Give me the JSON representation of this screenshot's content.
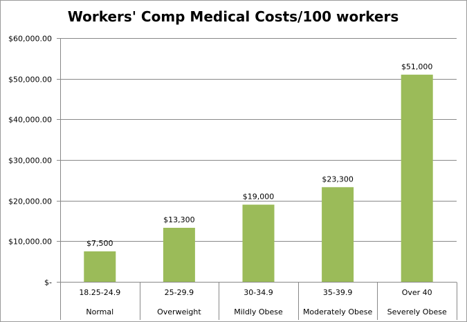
{
  "chart_data": {
    "type": "bar",
    "title": "Workers' Comp Medical Costs/100 workers",
    "categories": [
      [
        "18.25-24.9",
        "Normal"
      ],
      [
        "25-29.9",
        "Overweight"
      ],
      [
        "30-34.9",
        "Mildly Obese"
      ],
      [
        "35-39.9",
        "Moderately Obese"
      ],
      [
        "Over 40",
        "Severely Obese"
      ]
    ],
    "values": [
      7500,
      13300,
      19000,
      23300,
      51000
    ],
    "data_labels": [
      "$7,500",
      "$13,300",
      "$19,000",
      "$23,300",
      "$51,000"
    ],
    "ylim": [
      0,
      60000
    ],
    "yticks": [
      0,
      10000,
      20000,
      30000,
      40000,
      50000,
      60000
    ],
    "ytick_labels": [
      "$-",
      "$10,000.00",
      "$20,000.00",
      "$30,000.00",
      "$40,000.00",
      "$50,000.00",
      "$60,000.00"
    ],
    "grid": true,
    "legend": "none",
    "bar_color": "#9bbb59",
    "grid_color": "#888888"
  }
}
